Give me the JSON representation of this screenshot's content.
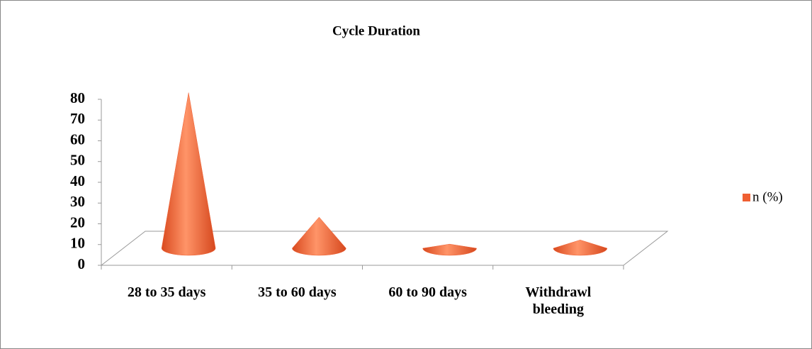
{
  "chart_data": {
    "type": "cone",
    "title": "Cycle Duration",
    "categories": [
      "28 to 35 days",
      "35 to 60 days",
      "60 to 90 days",
      "Withdrawl bleeding"
    ],
    "series": [
      {
        "name": "n (%)",
        "color": "#ef5f32",
        "values": [
          75,
          15,
          2,
          4
        ]
      }
    ],
    "ylim": [
      0,
      80
    ],
    "yticks": [
      0,
      10,
      20,
      30,
      40,
      50,
      60,
      70,
      80
    ],
    "grid": false,
    "legend": "right"
  }
}
